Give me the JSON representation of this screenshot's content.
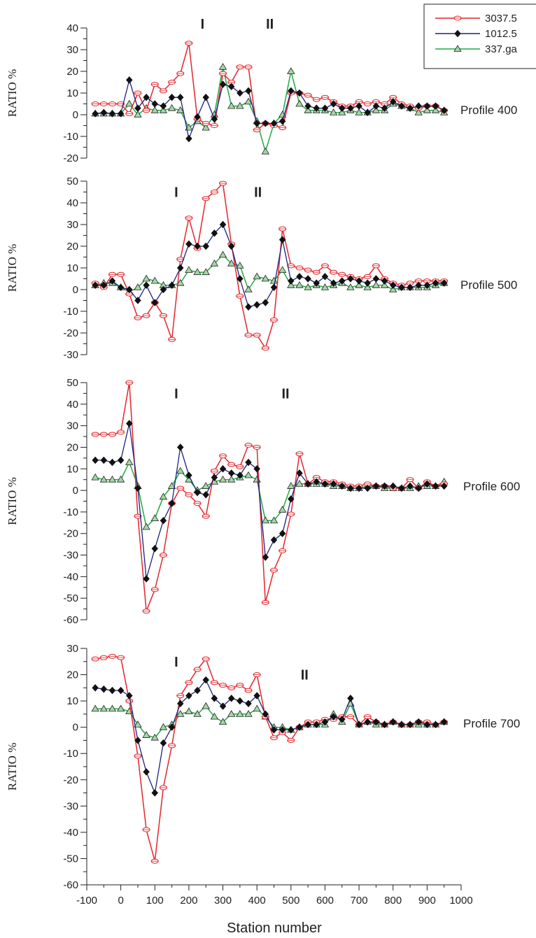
{
  "figure": {
    "xlabel": "Station number",
    "x_ticks": [
      "-100",
      "0",
      "100",
      "200",
      "300",
      "400",
      "500",
      "600",
      "700",
      "800",
      "900",
      "1000"
    ],
    "legend": [
      {
        "label": "3037.5",
        "color": "#e3262c",
        "marker": "open-circle"
      },
      {
        "label": "1012.5",
        "color": "#1a237e",
        "marker": "filled-diamond"
      },
      {
        "label": "337.ga",
        "color": "#21a845",
        "marker": "open-triangle"
      }
    ]
  },
  "chart_data": [
    {
      "type": "line",
      "profile_label": "Profile 400",
      "ylabel": "RATIO %",
      "xlim": [
        -100,
        1000
      ],
      "ylim": [
        -20,
        40
      ],
      "y_ticks": [
        "40",
        "30",
        "20",
        "10",
        "0",
        "-10",
        "-20"
      ],
      "zones": [
        {
          "label": "I",
          "x": 240,
          "y": 42
        },
        {
          "label": "II",
          "x": 438,
          "y": 42
        }
      ],
      "x": [
        -75,
        -50,
        -25,
        0,
        25,
        50,
        75,
        100,
        125,
        150,
        175,
        200,
        225,
        250,
        275,
        300,
        325,
        350,
        375,
        400,
        425,
        450,
        475,
        500,
        525,
        550,
        575,
        600,
        625,
        650,
        675,
        700,
        725,
        750,
        775,
        800,
        825,
        850,
        875,
        900,
        925,
        950
      ],
      "series": [
        {
          "name": "3037.5",
          "color": "#e3262c",
          "marker": "circle",
          "values": [
            5,
            5,
            5,
            5,
            0.5,
            10,
            2,
            14,
            11,
            15,
            19,
            33,
            -2,
            -4,
            -5,
            19,
            15,
            22,
            22,
            -7,
            -4,
            -5,
            -6,
            10,
            10,
            9,
            7,
            8,
            6,
            4,
            4,
            6,
            5,
            6,
            5,
            8,
            5,
            4,
            3,
            4,
            4,
            2
          ]
        },
        {
          "name": "1012.5",
          "color": "#1a237e",
          "marker": "diamond",
          "values": [
            0.5,
            1,
            0.5,
            0.5,
            16,
            3,
            8,
            5,
            4,
            8,
            8,
            -11,
            -1,
            8,
            -2,
            14,
            13,
            10,
            11,
            -4,
            -4,
            -4,
            -3,
            11,
            10,
            4,
            3,
            3,
            5,
            3,
            3,
            4,
            1,
            4,
            3,
            6,
            4,
            3,
            4,
            4,
            4,
            2
          ]
        },
        {
          "name": "337.ga",
          "color": "#21a845",
          "marker": "triangle",
          "values": [
            0.5,
            0.5,
            0.5,
            0.5,
            5,
            0,
            3,
            2,
            2,
            3,
            2,
            -6,
            -3,
            -6,
            0,
            22,
            4,
            4,
            6,
            -3,
            -17,
            -4,
            0,
            20,
            5,
            2,
            2,
            2,
            1,
            1,
            2,
            1,
            1,
            2,
            2,
            5,
            4,
            3,
            1,
            2,
            2,
            1
          ]
        }
      ]
    },
    {
      "type": "line",
      "profile_label": "Profile 500",
      "ylabel": "RATIO %",
      "xlim": [
        -100,
        1000
      ],
      "ylim": [
        -30,
        50
      ],
      "y_ticks": [
        "50",
        "40",
        "30",
        "20",
        "10",
        "0",
        "-10",
        "-20",
        "-30"
      ],
      "zones": [
        {
          "label": "I",
          "x": 163,
          "y": 45
        },
        {
          "label": "II",
          "x": 403,
          "y": 45
        }
      ],
      "x": [
        -75,
        -50,
        -25,
        0,
        25,
        50,
        75,
        100,
        125,
        150,
        175,
        200,
        225,
        250,
        275,
        300,
        325,
        350,
        375,
        400,
        425,
        450,
        475,
        500,
        525,
        550,
        575,
        600,
        625,
        650,
        675,
        700,
        725,
        750,
        775,
        800,
        825,
        850,
        875,
        900,
        925,
        950
      ],
      "series": [
        {
          "name": "3037.5",
          "color": "#e3262c",
          "marker": "circle",
          "values": [
            3,
            1,
            7,
            7,
            -2,
            -13,
            -12,
            -6,
            -12,
            -23,
            14,
            33,
            19,
            42,
            45,
            49,
            21,
            -3,
            -21,
            -21,
            -27,
            -14,
            28,
            11,
            10,
            9,
            8,
            11,
            8,
            7,
            6,
            5,
            6,
            11,
            5,
            3,
            2,
            3,
            4,
            4,
            4,
            4
          ]
        },
        {
          "name": "1012.5",
          "color": "#1a237e",
          "marker": "diamond",
          "values": [
            2,
            2,
            4,
            1,
            0,
            -5,
            2,
            -6,
            0,
            2,
            10,
            21,
            20,
            20,
            26,
            30,
            20,
            5,
            -8,
            -7,
            -6,
            1,
            23,
            4,
            6,
            5,
            3,
            6,
            3,
            4,
            5,
            4,
            3,
            5,
            4,
            2,
            1,
            1,
            2,
            2,
            3,
            3
          ]
        },
        {
          "name": "337.ga",
          "color": "#21a845",
          "marker": "triangle",
          "values": [
            2,
            3,
            3,
            1,
            -1,
            1,
            5,
            4,
            2,
            2,
            3,
            9,
            8,
            8,
            12,
            16,
            12,
            11,
            0,
            6,
            5,
            4,
            9,
            2,
            2,
            1,
            2,
            1,
            2,
            3,
            1,
            2,
            1,
            2,
            2,
            0,
            1,
            1,
            1,
            1,
            2,
            3
          ]
        }
      ]
    },
    {
      "type": "line",
      "profile_label": "Profile 600",
      "ylabel": "RATIO %",
      "xlim": [
        -100,
        1000
      ],
      "ylim": [
        -60,
        50
      ],
      "y_ticks": [
        "50",
        "40",
        "30",
        "20",
        "10",
        "0",
        "-10",
        "-20",
        "-30",
        "-40",
        "-50",
        "-60"
      ],
      "zones": [
        {
          "label": "I",
          "x": 163,
          "y": 45
        },
        {
          "label": "II",
          "x": 484,
          "y": 45
        }
      ],
      "x": [
        -75,
        -50,
        -25,
        0,
        25,
        50,
        75,
        100,
        125,
        150,
        175,
        200,
        225,
        250,
        275,
        300,
        325,
        350,
        375,
        400,
        425,
        450,
        475,
        500,
        525,
        550,
        575,
        600,
        625,
        650,
        675,
        700,
        725,
        750,
        775,
        800,
        825,
        850,
        875,
        900,
        925,
        950
      ],
      "series": [
        {
          "name": "3037.5",
          "color": "#e3262c",
          "marker": "circle",
          "values": [
            26,
            26,
            26,
            27,
            50,
            -12,
            -56,
            -46,
            -30,
            -6,
            1,
            -2,
            -6,
            -12,
            9,
            16,
            12,
            11,
            21,
            20,
            -52,
            -37,
            -28,
            -11,
            17,
            3,
            6,
            4,
            4,
            3,
            2,
            2,
            3,
            2,
            2,
            1,
            1,
            5,
            1,
            4,
            2,
            3
          ]
        },
        {
          "name": "1012.5",
          "color": "#1a237e",
          "marker": "diamond",
          "values": [
            14,
            14,
            13,
            14,
            31,
            1,
            -41,
            -27,
            -14,
            -6,
            20,
            7,
            -1,
            -2,
            6,
            10,
            8,
            7,
            13,
            10,
            -31,
            -23,
            -20,
            -4,
            8,
            3,
            4,
            3,
            3,
            2,
            1,
            1,
            1,
            2,
            2,
            2,
            1,
            2,
            1,
            3,
            2,
            2
          ]
        },
        {
          "name": "337.ga",
          "color": "#21a845",
          "marker": "triangle",
          "values": [
            6,
            5,
            5,
            5,
            13,
            2,
            -17,
            -13,
            -3,
            2,
            9,
            5,
            0,
            2,
            4,
            5,
            5,
            6,
            7,
            5,
            -14,
            -14,
            -9,
            2,
            3,
            3,
            3,
            3,
            2,
            2,
            1,
            1,
            2,
            2,
            1,
            1,
            1,
            1,
            2,
            2,
            2,
            4
          ]
        }
      ]
    },
    {
      "type": "line",
      "profile_label": "Profile 700",
      "ylabel": "RATIO %",
      "xlim": [
        -100,
        1000
      ],
      "ylim": [
        -60,
        30
      ],
      "y_ticks": [
        "30",
        "20",
        "10",
        "0",
        "-10",
        "-20",
        "-30",
        "-40",
        "-50",
        "-60"
      ],
      "zones": [
        {
          "label": "I",
          "x": 163,
          "y": 25
        },
        {
          "label": "II",
          "x": 540,
          "y": 20
        }
      ],
      "x": [
        -75,
        -50,
        -25,
        0,
        25,
        50,
        75,
        100,
        125,
        150,
        175,
        200,
        225,
        250,
        275,
        300,
        325,
        350,
        375,
        400,
        425,
        450,
        475,
        500,
        525,
        550,
        575,
        600,
        625,
        650,
        675,
        700,
        725,
        750,
        775,
        800,
        825,
        850,
        875,
        900,
        925,
        950
      ],
      "series": [
        {
          "name": "3037.5",
          "color": "#e3262c",
          "marker": "circle",
          "values": [
            26,
            26.5,
            27,
            26.5,
            10,
            -11,
            -39,
            -51,
            -23,
            -7,
            12,
            17,
            22,
            26,
            17,
            16,
            15,
            16,
            14,
            20,
            4,
            -4,
            -2,
            -5,
            0,
            2,
            2,
            3,
            3,
            4,
            4,
            1,
            4,
            2,
            1,
            2,
            1,
            1,
            2,
            2,
            1,
            2
          ]
        },
        {
          "name": "1012.5",
          "color": "#1a237e",
          "marker": "diamond",
          "values": [
            15,
            14.5,
            14,
            14,
            12,
            -5,
            -17,
            -25,
            -6,
            0,
            9,
            12,
            14,
            18,
            11,
            8,
            11,
            10,
            9,
            12,
            5,
            -1,
            -1,
            -1,
            0,
            1,
            1,
            2,
            4,
            3,
            11,
            1,
            2,
            2,
            1,
            2,
            1,
            1,
            2,
            1,
            1,
            2
          ]
        },
        {
          "name": "337.ga",
          "color": "#21a845",
          "marker": "triangle",
          "values": [
            7,
            7,
            7,
            7,
            6,
            1,
            -3,
            -4,
            0,
            1,
            5,
            6,
            5,
            8,
            4,
            2,
            5,
            5,
            5,
            7,
            4,
            0,
            0,
            -1,
            0,
            1,
            1,
            1,
            5,
            2,
            9,
            1,
            2,
            1,
            1,
            2,
            1,
            1,
            1,
            1,
            1,
            2
          ]
        }
      ]
    }
  ]
}
